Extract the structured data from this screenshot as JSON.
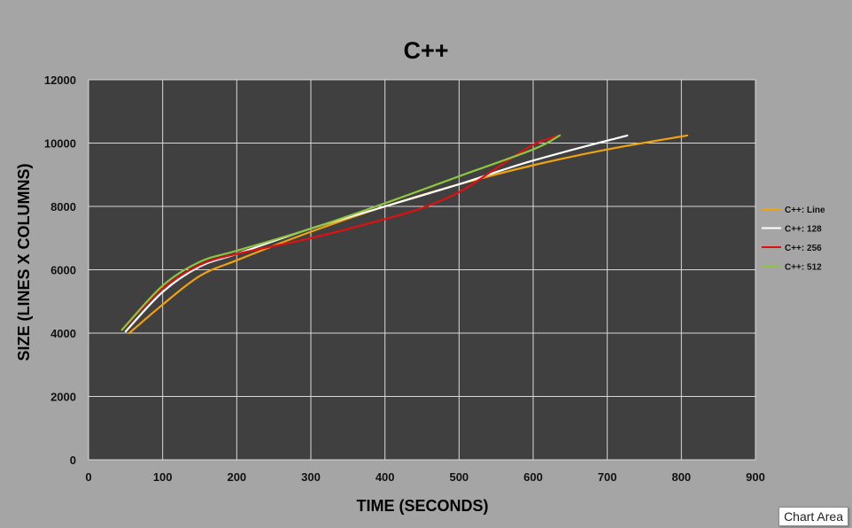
{
  "chart_data": {
    "type": "line",
    "title": "C++",
    "xlabel": "TIME (SECONDS)",
    "ylabel": "SIZE (LINES X COLUMNS)",
    "xlim": [
      0,
      900
    ],
    "ylim": [
      0,
      12000
    ],
    "x_ticks": [
      0,
      100,
      200,
      300,
      400,
      500,
      600,
      700,
      800,
      900
    ],
    "y_ticks": [
      0,
      2000,
      4000,
      6000,
      8000,
      10000,
      12000
    ],
    "grid": true,
    "legend_position": "right",
    "series": [
      {
        "name": "C++: Line",
        "color": "#f0a30a",
        "x": [
          55,
          100,
          150,
          200,
          300,
          400,
          500,
          600,
          700,
          808
        ],
        "y": [
          4000,
          4900,
          5800,
          6300,
          7200,
          8000,
          8700,
          9300,
          9800,
          10240
        ]
      },
      {
        "name": "C++: 128",
        "color": "#ffffff",
        "x": [
          50,
          100,
          150,
          200,
          300,
          400,
          500,
          600,
          727
        ],
        "y": [
          4050,
          5300,
          6100,
          6500,
          7300,
          8000,
          8700,
          9450,
          10240
        ]
      },
      {
        "name": "C++: 256",
        "color": "#e01010",
        "x": [
          45,
          100,
          150,
          200,
          300,
          400,
          450,
          500,
          550,
          600,
          636
        ],
        "y": [
          4100,
          5400,
          6150,
          6500,
          7000,
          7600,
          7950,
          8450,
          9200,
          9950,
          10240
        ]
      },
      {
        "name": "C++: 512",
        "color": "#8cc63f",
        "x": [
          45,
          100,
          150,
          200,
          300,
          400,
          500,
          600,
          636
        ],
        "y": [
          4100,
          5500,
          6250,
          6600,
          7300,
          8100,
          8950,
          9800,
          10240
        ]
      }
    ]
  },
  "tooltip": "Chart Area"
}
